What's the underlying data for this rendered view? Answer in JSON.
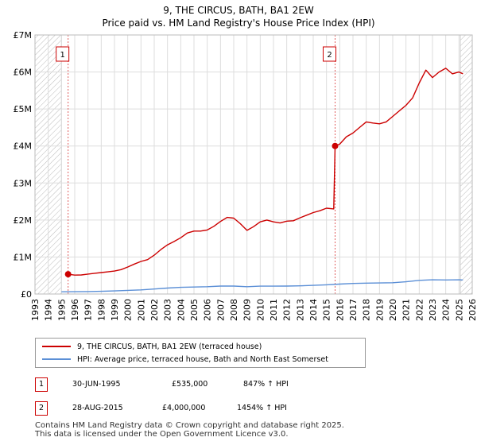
{
  "header": {
    "title": "9, THE CIRCUS, BATH, BA1 2EW",
    "subtitle": "Price paid vs. HM Land Registry's House Price Index (HPI)"
  },
  "chart_data": {
    "type": "line",
    "title": "9, THE CIRCUS, BATH, BA1 2EW",
    "subtitle": "Price paid vs. HM Land Registry's House Price Index (HPI)",
    "xlim": [
      1993,
      2026
    ],
    "ylim": [
      0,
      7000000
    ],
    "y_ticks": [
      0,
      1000000,
      2000000,
      3000000,
      4000000,
      5000000,
      6000000,
      7000000
    ],
    "y_tick_labels": [
      "£0",
      "£1M",
      "£2M",
      "£3M",
      "£4M",
      "£5M",
      "£6M",
      "£7M"
    ],
    "x_ticks": [
      1993,
      1994,
      1995,
      1996,
      1997,
      1998,
      1999,
      2000,
      2001,
      2002,
      2003,
      2004,
      2005,
      2006,
      2007,
      2008,
      2009,
      2010,
      2011,
      2012,
      2013,
      2014,
      2015,
      2016,
      2017,
      2018,
      2019,
      2020,
      2021,
      2022,
      2023,
      2024,
      2025,
      2026
    ],
    "hatched_ranges": [
      [
        1993,
        1995.0
      ],
      [
        2025.1,
        2026
      ]
    ],
    "grid": true,
    "series": [
      {
        "name": "9, THE CIRCUS, BATH, BA1 2EW (terraced house)",
        "color": "#cc0000",
        "points": [
          [
            1995.5,
            535000
          ],
          [
            1996.0,
            510000
          ],
          [
            1996.5,
            515000
          ],
          [
            1997.0,
            540000
          ],
          [
            1997.5,
            560000
          ],
          [
            1998.0,
            580000
          ],
          [
            1998.5,
            600000
          ],
          [
            1999.0,
            620000
          ],
          [
            1999.5,
            660000
          ],
          [
            2000.0,
            730000
          ],
          [
            2000.5,
            810000
          ],
          [
            2001.0,
            880000
          ],
          [
            2001.5,
            930000
          ],
          [
            2002.0,
            1050000
          ],
          [
            2002.5,
            1200000
          ],
          [
            2003.0,
            1330000
          ],
          [
            2003.5,
            1420000
          ],
          [
            2004.0,
            1520000
          ],
          [
            2004.5,
            1650000
          ],
          [
            2005.0,
            1700000
          ],
          [
            2005.5,
            1700000
          ],
          [
            2006.0,
            1730000
          ],
          [
            2006.5,
            1830000
          ],
          [
            2007.0,
            1960000
          ],
          [
            2007.5,
            2070000
          ],
          [
            2008.0,
            2050000
          ],
          [
            2008.5,
            1900000
          ],
          [
            2009.0,
            1720000
          ],
          [
            2009.5,
            1820000
          ],
          [
            2010.0,
            1950000
          ],
          [
            2010.5,
            2000000
          ],
          [
            2011.0,
            1950000
          ],
          [
            2011.5,
            1920000
          ],
          [
            2012.0,
            1970000
          ],
          [
            2012.5,
            1980000
          ],
          [
            2013.0,
            2060000
          ],
          [
            2013.5,
            2130000
          ],
          [
            2014.0,
            2200000
          ],
          [
            2014.5,
            2250000
          ],
          [
            2015.0,
            2320000
          ],
          [
            2015.55,
            2300000
          ],
          [
            2015.65,
            4000000
          ],
          [
            2016.0,
            4050000
          ],
          [
            2016.5,
            4250000
          ],
          [
            2017.0,
            4350000
          ],
          [
            2017.5,
            4500000
          ],
          [
            2018.0,
            4650000
          ],
          [
            2018.5,
            4620000
          ],
          [
            2019.0,
            4600000
          ],
          [
            2019.5,
            4650000
          ],
          [
            2020.0,
            4800000
          ],
          [
            2020.5,
            4950000
          ],
          [
            2021.0,
            5100000
          ],
          [
            2021.5,
            5300000
          ],
          [
            2022.0,
            5700000
          ],
          [
            2022.5,
            6050000
          ],
          [
            2023.0,
            5850000
          ],
          [
            2023.5,
            6000000
          ],
          [
            2024.0,
            6100000
          ],
          [
            2024.5,
            5950000
          ],
          [
            2025.0,
            6000000
          ],
          [
            2025.3,
            5950000
          ]
        ]
      },
      {
        "name": "HPI: Average price, terraced house, Bath and North East Somerset",
        "color": "#5b8fd6",
        "points": [
          [
            1995.0,
            60000
          ],
          [
            1996.0,
            62000
          ],
          [
            1997.0,
            66000
          ],
          [
            1998.0,
            74000
          ],
          [
            1999.0,
            84000
          ],
          [
            2000.0,
            98000
          ],
          [
            2001.0,
            112000
          ],
          [
            2002.0,
            135000
          ],
          [
            2003.0,
            160000
          ],
          [
            2004.0,
            180000
          ],
          [
            2005.0,
            188000
          ],
          [
            2006.0,
            198000
          ],
          [
            2007.0,
            215000
          ],
          [
            2008.0,
            215000
          ],
          [
            2009.0,
            198000
          ],
          [
            2010.0,
            212000
          ],
          [
            2011.0,
            213000
          ],
          [
            2012.0,
            215000
          ],
          [
            2013.0,
            222000
          ],
          [
            2014.0,
            235000
          ],
          [
            2015.0,
            250000
          ],
          [
            2016.0,
            268000
          ],
          [
            2017.0,
            285000
          ],
          [
            2018.0,
            295000
          ],
          [
            2019.0,
            298000
          ],
          [
            2020.0,
            305000
          ],
          [
            2021.0,
            330000
          ],
          [
            2022.0,
            370000
          ],
          [
            2023.0,
            385000
          ],
          [
            2024.0,
            380000
          ],
          [
            2025.0,
            385000
          ],
          [
            2025.3,
            380000
          ]
        ]
      }
    ],
    "annotations": [
      {
        "label": "1",
        "x": 1995.5,
        "y": 535000
      },
      {
        "label": "2",
        "x": 2015.65,
        "y": 4000000
      }
    ]
  },
  "legend": {
    "items": [
      {
        "label": "9, THE CIRCUS, BATH, BA1 2EW (terraced house)",
        "color": "#cc0000"
      },
      {
        "label": "HPI: Average price, terraced house, Bath and North East Somerset",
        "color": "#5b8fd6"
      }
    ]
  },
  "sales": [
    {
      "num": "1",
      "date": "30-JUN-1995",
      "price": "£535,000",
      "hpi": "847% ↑ HPI"
    },
    {
      "num": "2",
      "date": "28-AUG-2015",
      "price": "£4,000,000",
      "hpi": "1454% ↑ HPI"
    }
  ],
  "footer": {
    "line1": "Contains HM Land Registry data © Crown copyright and database right 2025.",
    "line2": "This data is licensed under the Open Government Licence v3.0."
  }
}
